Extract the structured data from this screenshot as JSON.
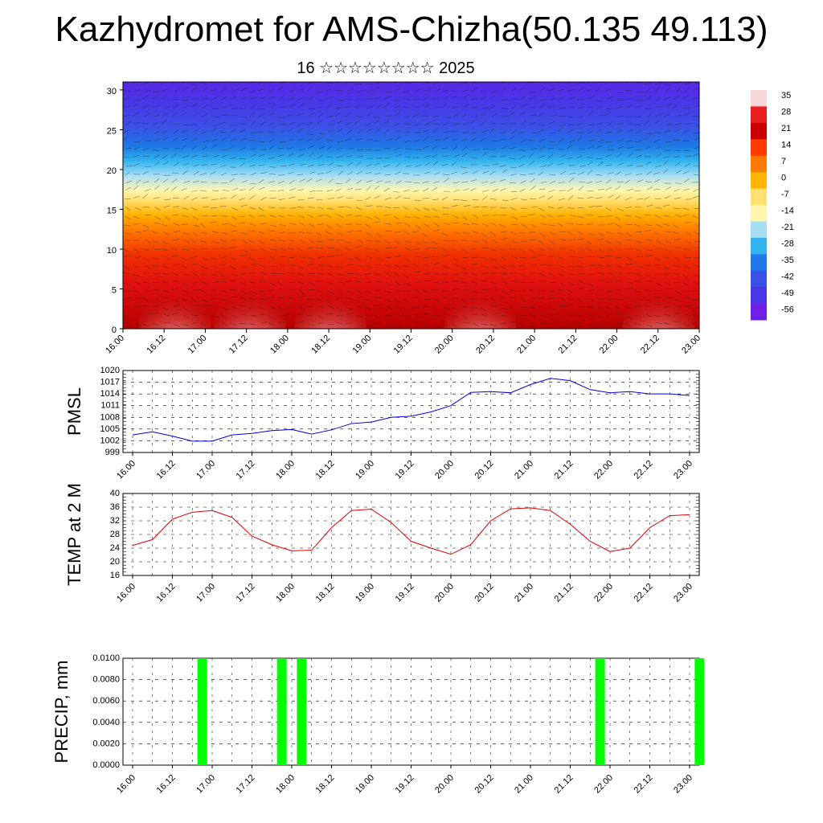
{
  "title": "Kazhydromet for AMS-Chizha(50.135 49.113)",
  "subtitle": "16 ☆☆☆☆☆☆☆☆ 2025",
  "time_ticks": [
    "16.00",
    "16.12",
    "17.00",
    "17.12",
    "18.00",
    "18.12",
    "19.00",
    "19.12",
    "20.00",
    "20.12",
    "21.00",
    "21.12",
    "22.00",
    "22.12",
    "23.00"
  ],
  "chart_data": [
    {
      "type": "heatmap",
      "title": "",
      "xlabel": "",
      "ylabel": "",
      "ylim": [
        0,
        31
      ],
      "y_ticks": [
        0,
        5,
        10,
        15,
        20,
        25,
        30
      ],
      "colorbar_labels": [
        "35",
        "28",
        "21",
        "14",
        "7",
        "0",
        "-7",
        "-14",
        "-21",
        "-28",
        "-35",
        "-42",
        "-49",
        "-56"
      ],
      "colorbar_colors": [
        "#f7d7d7",
        "#e82020",
        "#c80000",
        "#ff3a00",
        "#ff7a00",
        "#ffb400",
        "#ffe070",
        "#fff6b0",
        "#a6ddf5",
        "#32b4ee",
        "#1e78e6",
        "#3c50e6",
        "#4a36e6",
        "#7020e6"
      ],
      "description_layers": [
        {
          "altitude_km": 0,
          "temp": 30
        },
        {
          "altitude_km": 6,
          "temp": 20
        },
        {
          "altitude_km": 10,
          "temp": 5
        },
        {
          "altitude_km": 14,
          "temp": -10
        },
        {
          "altitude_km": 18,
          "temp": -25
        },
        {
          "altitude_km": 22,
          "temp": -45
        },
        {
          "altitude_km": 26,
          "temp": -55
        },
        {
          "altitude_km": 30,
          "temp": -58
        }
      ]
    },
    {
      "type": "line",
      "ylabel": "PMSL",
      "ylim": [
        999,
        1020
      ],
      "y_ticks": [
        999,
        1002,
        1005,
        1008,
        1011,
        1014,
        1017,
        1020
      ],
      "color": "#0000dd",
      "x": [
        0,
        1,
        2,
        3,
        4,
        5,
        6,
        7,
        8,
        9,
        10,
        11,
        12,
        13,
        14,
        15,
        16,
        17,
        18,
        19,
        20,
        21,
        22,
        23,
        24,
        25,
        26,
        27,
        28
      ],
      "values": [
        1003.5,
        1004.3,
        1003.2,
        1001.9,
        1001.9,
        1003.5,
        1003.9,
        1004.6,
        1004.9,
        1003.7,
        1004.8,
        1006.4,
        1006.8,
        1008.0,
        1008.3,
        1009.4,
        1011.0,
        1014.4,
        1014.6,
        1014.3,
        1016.4,
        1018.0,
        1017.4,
        1015.1,
        1014.3,
        1014.6,
        1014.0,
        1014.0,
        1013.6
      ]
    },
    {
      "type": "line",
      "ylabel": "TEMP at 2 M",
      "ylim": [
        16,
        40
      ],
      "y_ticks": [
        16,
        20,
        24,
        28,
        32,
        36,
        40
      ],
      "color": "#dd0000",
      "x": [
        0,
        1,
        2,
        3,
        4,
        5,
        6,
        7,
        8,
        9,
        10,
        11,
        12,
        13,
        14,
        15,
        16,
        17,
        18,
        19,
        20,
        21,
        22,
        23,
        24,
        25,
        26,
        27,
        28
      ],
      "values": [
        24.8,
        26.5,
        32.5,
        34.5,
        35.0,
        33.0,
        27.5,
        25.0,
        23.2,
        23.4,
        30.0,
        35.0,
        35.4,
        31.5,
        26.0,
        24.0,
        22.2,
        25.0,
        32.0,
        35.5,
        35.8,
        35.0,
        31.0,
        26.0,
        23.0,
        24.0,
        30.0,
        33.5,
        33.8
      ]
    },
    {
      "type": "bar",
      "ylabel": "PRECIP, mm",
      "ylim": [
        0,
        0.01
      ],
      "y_ticks": [
        "0.0000",
        "0.0020",
        "0.0040",
        "0.0060",
        "0.0080",
        "0.0100"
      ],
      "color": "#00ff00",
      "bars": [
        {
          "time": "16.18",
          "x": 3.5,
          "value": 0.01
        },
        {
          "time": "17.18",
          "x": 7.5,
          "value": 0.01
        },
        {
          "time": "17.21",
          "x": 8.5,
          "value": 0.01
        },
        {
          "time": "21.18",
          "x": 23.5,
          "value": 0.01
        },
        {
          "time": "22.21",
          "x": 28.5,
          "value": 0.01
        }
      ]
    }
  ]
}
